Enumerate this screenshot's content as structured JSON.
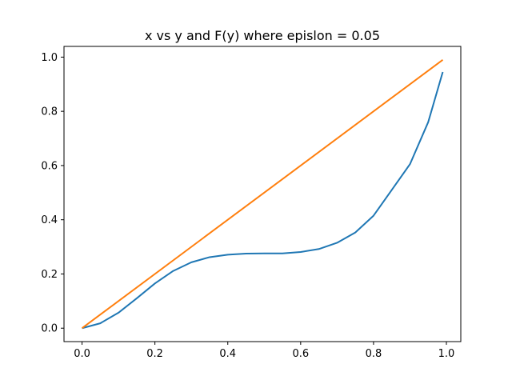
{
  "chart_data": {
    "type": "line",
    "title": "x vs y and F(y) where epislon = 0.05",
    "xlabel": "",
    "ylabel": "",
    "xlim": [
      -0.0495,
      1.0395
    ],
    "ylim": [
      -0.0495,
      1.0395
    ],
    "x_ticks": [
      "0.0",
      "0.2",
      "0.4",
      "0.6",
      "0.8",
      "1.0"
    ],
    "y_ticks": [
      "0.0",
      "0.2",
      "0.4",
      "0.6",
      "0.8",
      "1.0"
    ],
    "grid": false,
    "legend": "none",
    "series": [
      {
        "color": "#1f77b4",
        "x": [
          0.0,
          0.05,
          0.1,
          0.15,
          0.2,
          0.25,
          0.3,
          0.35,
          0.4,
          0.45,
          0.5,
          0.55,
          0.6,
          0.65,
          0.7,
          0.75,
          0.8,
          0.85,
          0.9,
          0.95,
          0.99
        ],
        "y": [
          0.0,
          0.018,
          0.057,
          0.11,
          0.165,
          0.211,
          0.243,
          0.262,
          0.271,
          0.275,
          0.276,
          0.276,
          0.281,
          0.292,
          0.315,
          0.353,
          0.415,
          0.51,
          0.605,
          0.76,
          0.945
        ]
      },
      {
        "color": "#ff7f0e",
        "x": [
          0.0,
          0.99
        ],
        "y": [
          0.0,
          0.99
        ]
      }
    ]
  }
}
